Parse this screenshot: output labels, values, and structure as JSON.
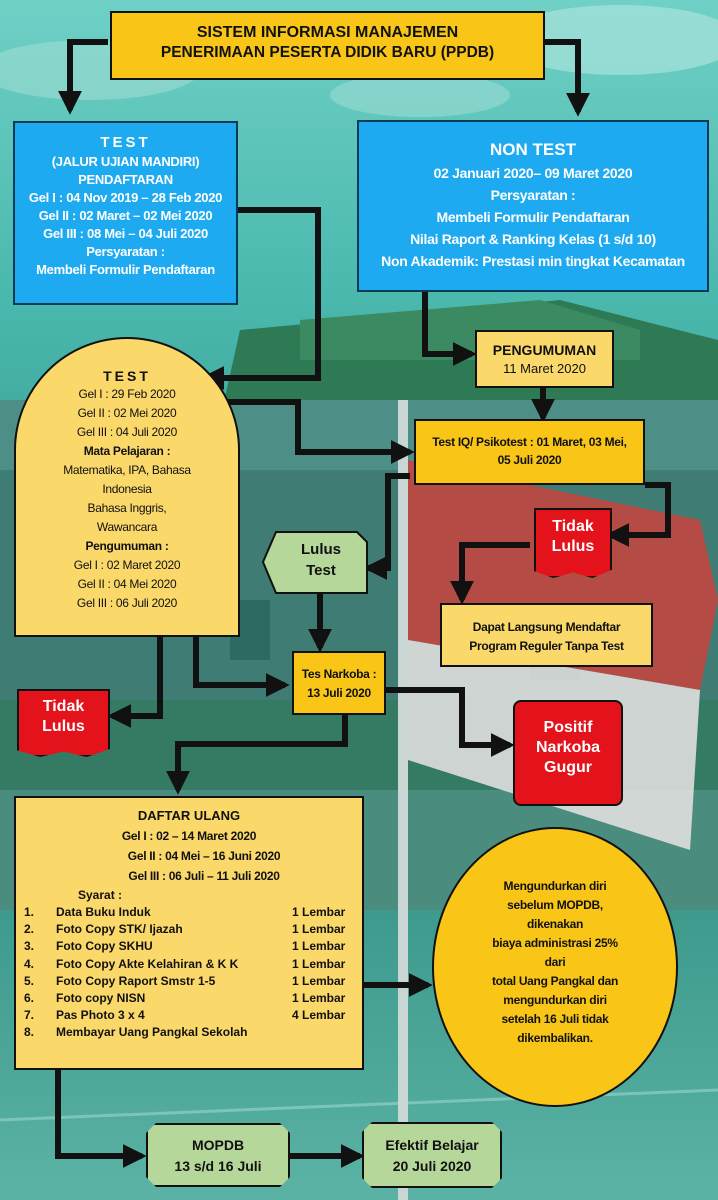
{
  "colors": {
    "yellow": "#f9c617",
    "blue": "#1eaaf0",
    "red": "#e3121b",
    "green": "#b6d79a",
    "arrow": "#111111"
  },
  "title": {
    "line1": "SISTEM INFORMASI MANAJEMEN",
    "line2": "PENERIMAAN PESERTA DIDIK BARU (PPDB)"
  },
  "test_box": {
    "heading": "TEST",
    "lines": [
      "(JALUR UJIAN MANDIRI)",
      "PENDAFTARAN",
      "Gel I : 04 Nov 2019 – 28 Feb 2020",
      "Gel II : 02 Maret – 02 Mei 2020",
      "Gel III : 08 Mei – 04 Juli 2020",
      "Persyaratan :",
      "Membeli Formulir Pendaftaran"
    ]
  },
  "non_test_box": {
    "heading": "NON TEST",
    "lines": [
      "02 Januari 2020– 09 Maret 2020",
      "Persyaratan :",
      "Membeli Formulir Pendaftaran",
      "Nilai Raport & Ranking Kelas (1 s/d 10)",
      "Non Akademik: Prestasi min tingkat Kecamatan"
    ]
  },
  "pengumuman": {
    "line1": "PENGUMUMAN",
    "line2": "11 Maret 2020"
  },
  "test_detail": {
    "heading": "TEST",
    "lines": [
      "Gel I : 29 Feb 2020",
      "Gel II : 02 Mei 2020",
      "Gel III : 04 Juli 2020",
      "Mata Pelajaran :",
      "Matematika, IPA, Bahasa",
      "Indonesia",
      "Bahasa Inggris,",
      "Wawancara",
      "Pengumuman :",
      "Gel I : 02 Maret 2020",
      "Gel II : 04 Mei 2020",
      "Gel III : 06 Juli 2020"
    ]
  },
  "psikotest": {
    "line1": "Test IQ/ Psikotest : 01 Maret, 03 Mei,",
    "line2": "05 Juli 2020"
  },
  "lulus_test": {
    "line1": "Lulus",
    "line2": "Test"
  },
  "tidak_lulus_right": {
    "line1": "Tidak",
    "line2": "Lulus"
  },
  "reguler": {
    "line1": "Dapat Langsung Mendaftar",
    "line2": "Program Reguler Tanpa Test"
  },
  "tidak_lulus_left": {
    "line1": "Tidak",
    "line2": "Lulus"
  },
  "narkoba": {
    "line1": "Tes Narkoba :",
    "line2": "13 Juli 2020"
  },
  "positif": {
    "line1": "Positif",
    "line2": "Narkoba",
    "line3": "Gugur"
  },
  "daftar_ulang": {
    "heading": "DAFTAR ULANG",
    "gel": [
      "Gel I : 02 – 14 Maret 2020",
      "Gel II : 04 Mei – 16 Juni 2020",
      "Gel III : 06 Juli – 11 Juli 2020"
    ],
    "syarat_label": "Syarat :",
    "items": [
      {
        "no": "1.",
        "text": "Data Buku Induk",
        "qty": "1 Lembar"
      },
      {
        "no": "2.",
        "text": "Foto Copy STK/ Ijazah",
        "qty": "1 Lembar"
      },
      {
        "no": "3.",
        "text": "Foto Copy SKHU",
        "qty": "1 Lembar"
      },
      {
        "no": "4.",
        "text": "Foto Copy Akte Kelahiran & K K",
        "qty": "1 Lembar"
      },
      {
        "no": "5.",
        "text": "Foto Copy Raport Smstr 1-5",
        "qty": "1 Lembar"
      },
      {
        "no": "6.",
        "text": "Foto copy NISN",
        "qty": "1 Lembar"
      },
      {
        "no": "7.",
        "text": "Pas Photo 3 x 4",
        "qty": "4 Lembar"
      },
      {
        "no": "8.",
        "text": "Membayar Uang Pangkal Sekolah",
        "qty": ""
      }
    ]
  },
  "mengundurkan": {
    "lines": [
      "Mengundurkan diri",
      "sebelum MOPDB,",
      "dikenakan",
      "biaya administrasi 25%",
      "dari",
      "total Uang Pangkal dan",
      "mengundurkan diri",
      "setelah 16 Juli tidak",
      "dikembalikan."
    ]
  },
  "mopdb": {
    "line1": "MOPDB",
    "line2": "13 s/d 16 Juli"
  },
  "efektif": {
    "line1": "Efektif Belajar",
    "line2": "20 Juli 2020"
  }
}
